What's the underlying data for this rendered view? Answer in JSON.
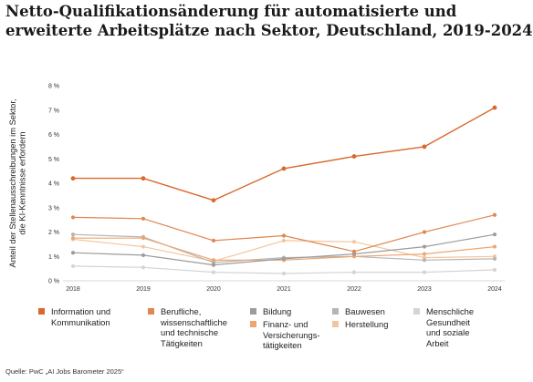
{
  "title_lines": [
    "Netto-Qualifikationsänderung für automatisierte und",
    "erweiterte Arbeitsplätze nach Sektor, Deutschland, 2019-2024"
  ],
  "source": "Quelle: PwC „AI Jobs Barometer 2025“",
  "chart_data": {
    "type": "line",
    "x": [
      "2018",
      "2019",
      "2020",
      "2021",
      "2022",
      "2023",
      "2024"
    ],
    "ylabel": "Anteil der Stellenausschreibungen im Sektor,\ndie KI-Kenntnisse erfordern",
    "ylim": [
      0,
      8
    ],
    "yticks": [
      "0 %",
      "1 %",
      "2 %",
      "3 %",
      "4 %",
      "5 %",
      "6 %",
      "7 %",
      "8 %"
    ],
    "grid": false,
    "legend_position": "bottom",
    "series": [
      {
        "name": "Information und\nKommunikation",
        "color": "#d9692b",
        "values": [
          4.2,
          4.2,
          3.3,
          4.6,
          5.1,
          5.5,
          7.1
        ]
      },
      {
        "name": "Berufliche,\nwissenschaftliche\nund technische\nTätigkeiten",
        "color": "#e0864f",
        "values": [
          2.6,
          2.55,
          1.65,
          1.85,
          1.2,
          2.0,
          2.7
        ]
      },
      {
        "name": "Bildung",
        "color": "#9c9c9c",
        "values": [
          1.15,
          1.05,
          0.65,
          0.9,
          1.1,
          1.4,
          1.9
        ]
      },
      {
        "name": "Finanz- und\nVersicherungs-\ntätigkeiten",
        "color": "#eea56f",
        "values": [
          1.75,
          1.75,
          0.85,
          0.85,
          1.0,
          1.1,
          1.4
        ]
      },
      {
        "name": "Bauwesen",
        "color": "#b5b5b5",
        "values": [
          1.9,
          1.8,
          0.75,
          0.95,
          1.0,
          0.85,
          0.9
        ]
      },
      {
        "name": "Herstellung",
        "color": "#f3c59f",
        "values": [
          1.7,
          1.4,
          0.8,
          1.65,
          1.6,
          0.95,
          1.0
        ]
      },
      {
        "name": "Menschliche\nGesundheit\nund soziale\nArbeit",
        "color": "#d4d4d4",
        "values": [
          0.6,
          0.55,
          0.35,
          0.3,
          0.35,
          0.35,
          0.45
        ]
      }
    ]
  }
}
